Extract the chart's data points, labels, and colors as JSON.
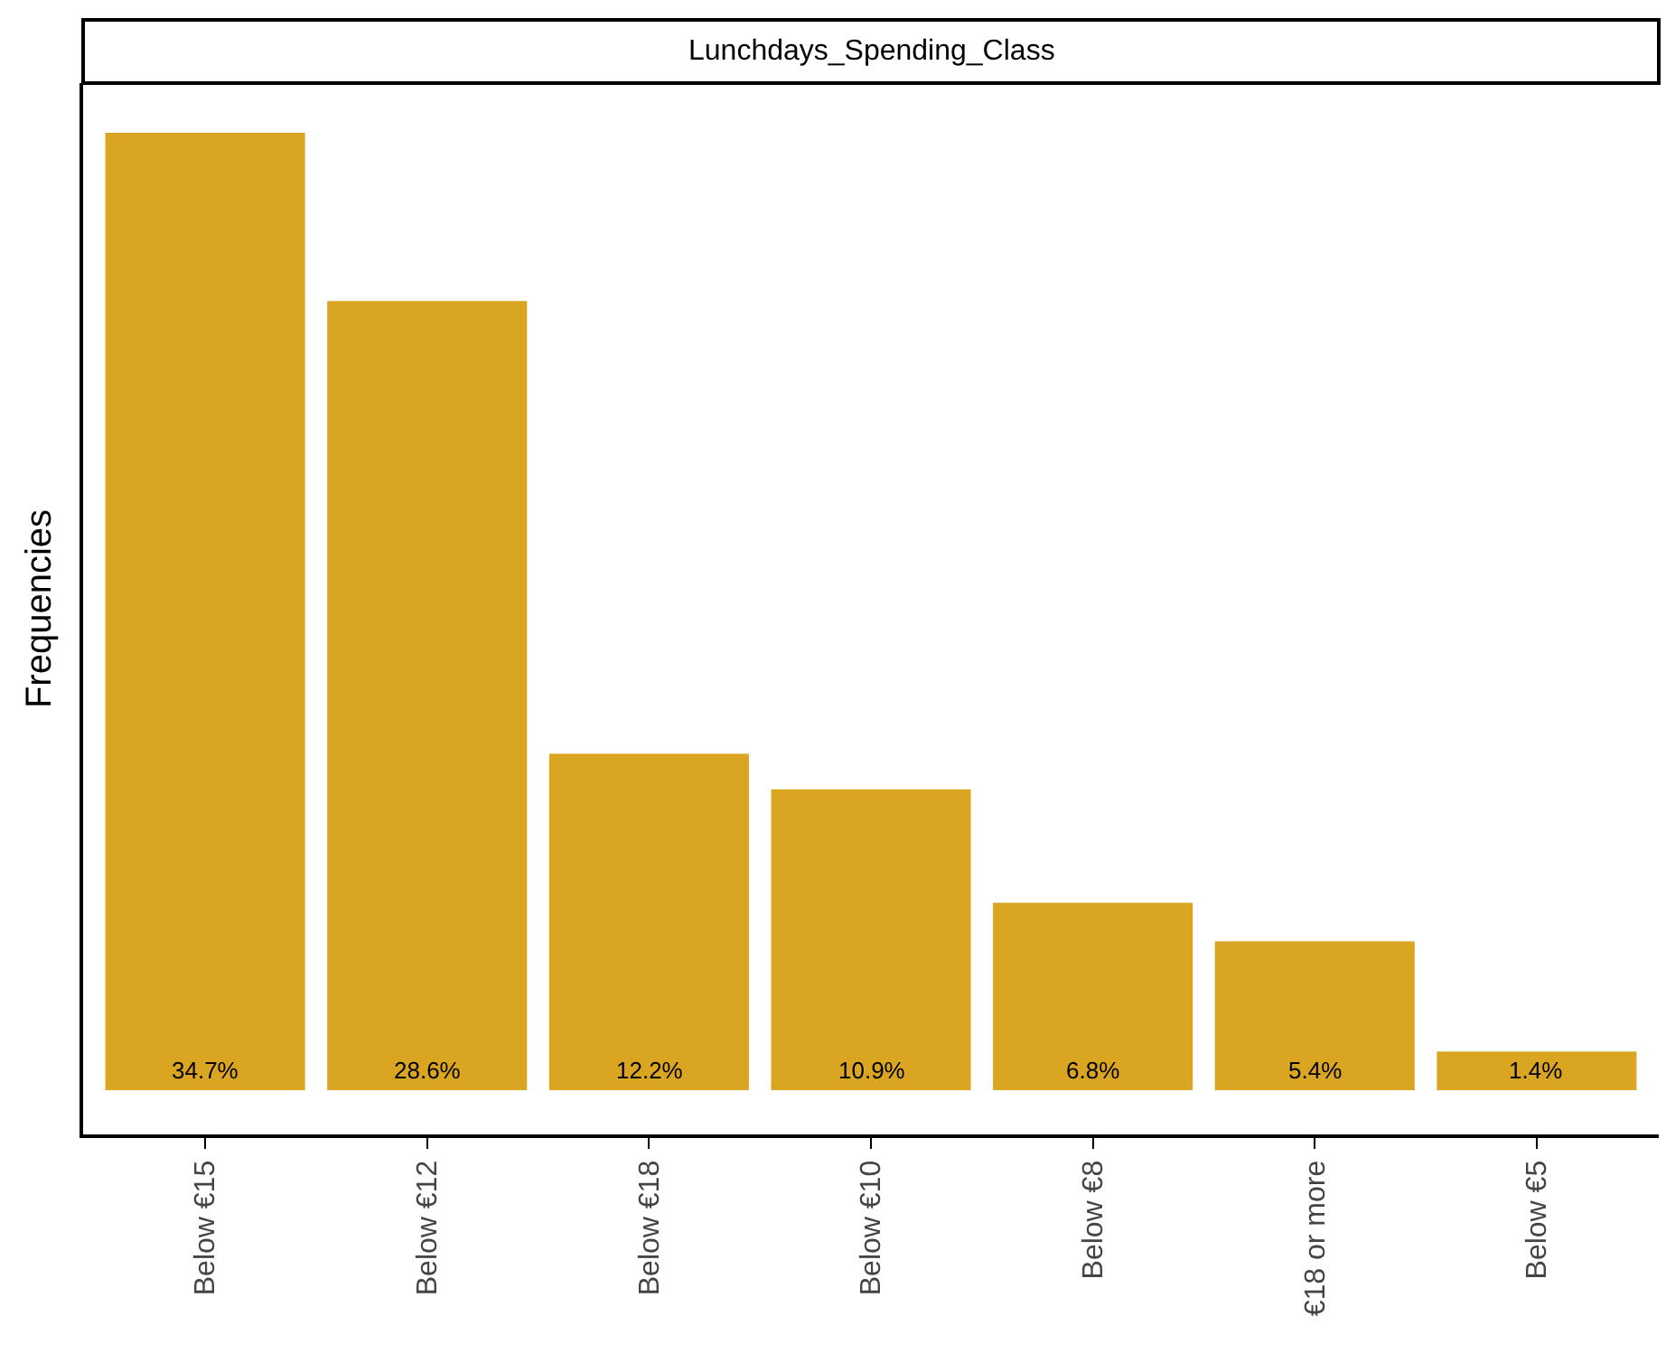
{
  "chart_data": {
    "type": "bar",
    "title": "Lunchdays_Spending_Class",
    "ylabel": "Frequencies",
    "categories": [
      "Below €15",
      "Below €12",
      "Below €18",
      "Below €10",
      "Below €8",
      "€18 or more",
      "Below €5"
    ],
    "values": [
      34.7,
      28.6,
      12.2,
      10.9,
      6.8,
      5.4,
      1.4
    ],
    "value_labels": [
      "34.7%",
      "28.6%",
      "12.2%",
      "10.9%",
      "6.8%",
      "5.4%",
      "1.4%"
    ],
    "color": "#daa520",
    "ylim": [
      -1.6,
      36.5
    ],
    "tick_labels": "x",
    "grid": false,
    "legend": false
  }
}
